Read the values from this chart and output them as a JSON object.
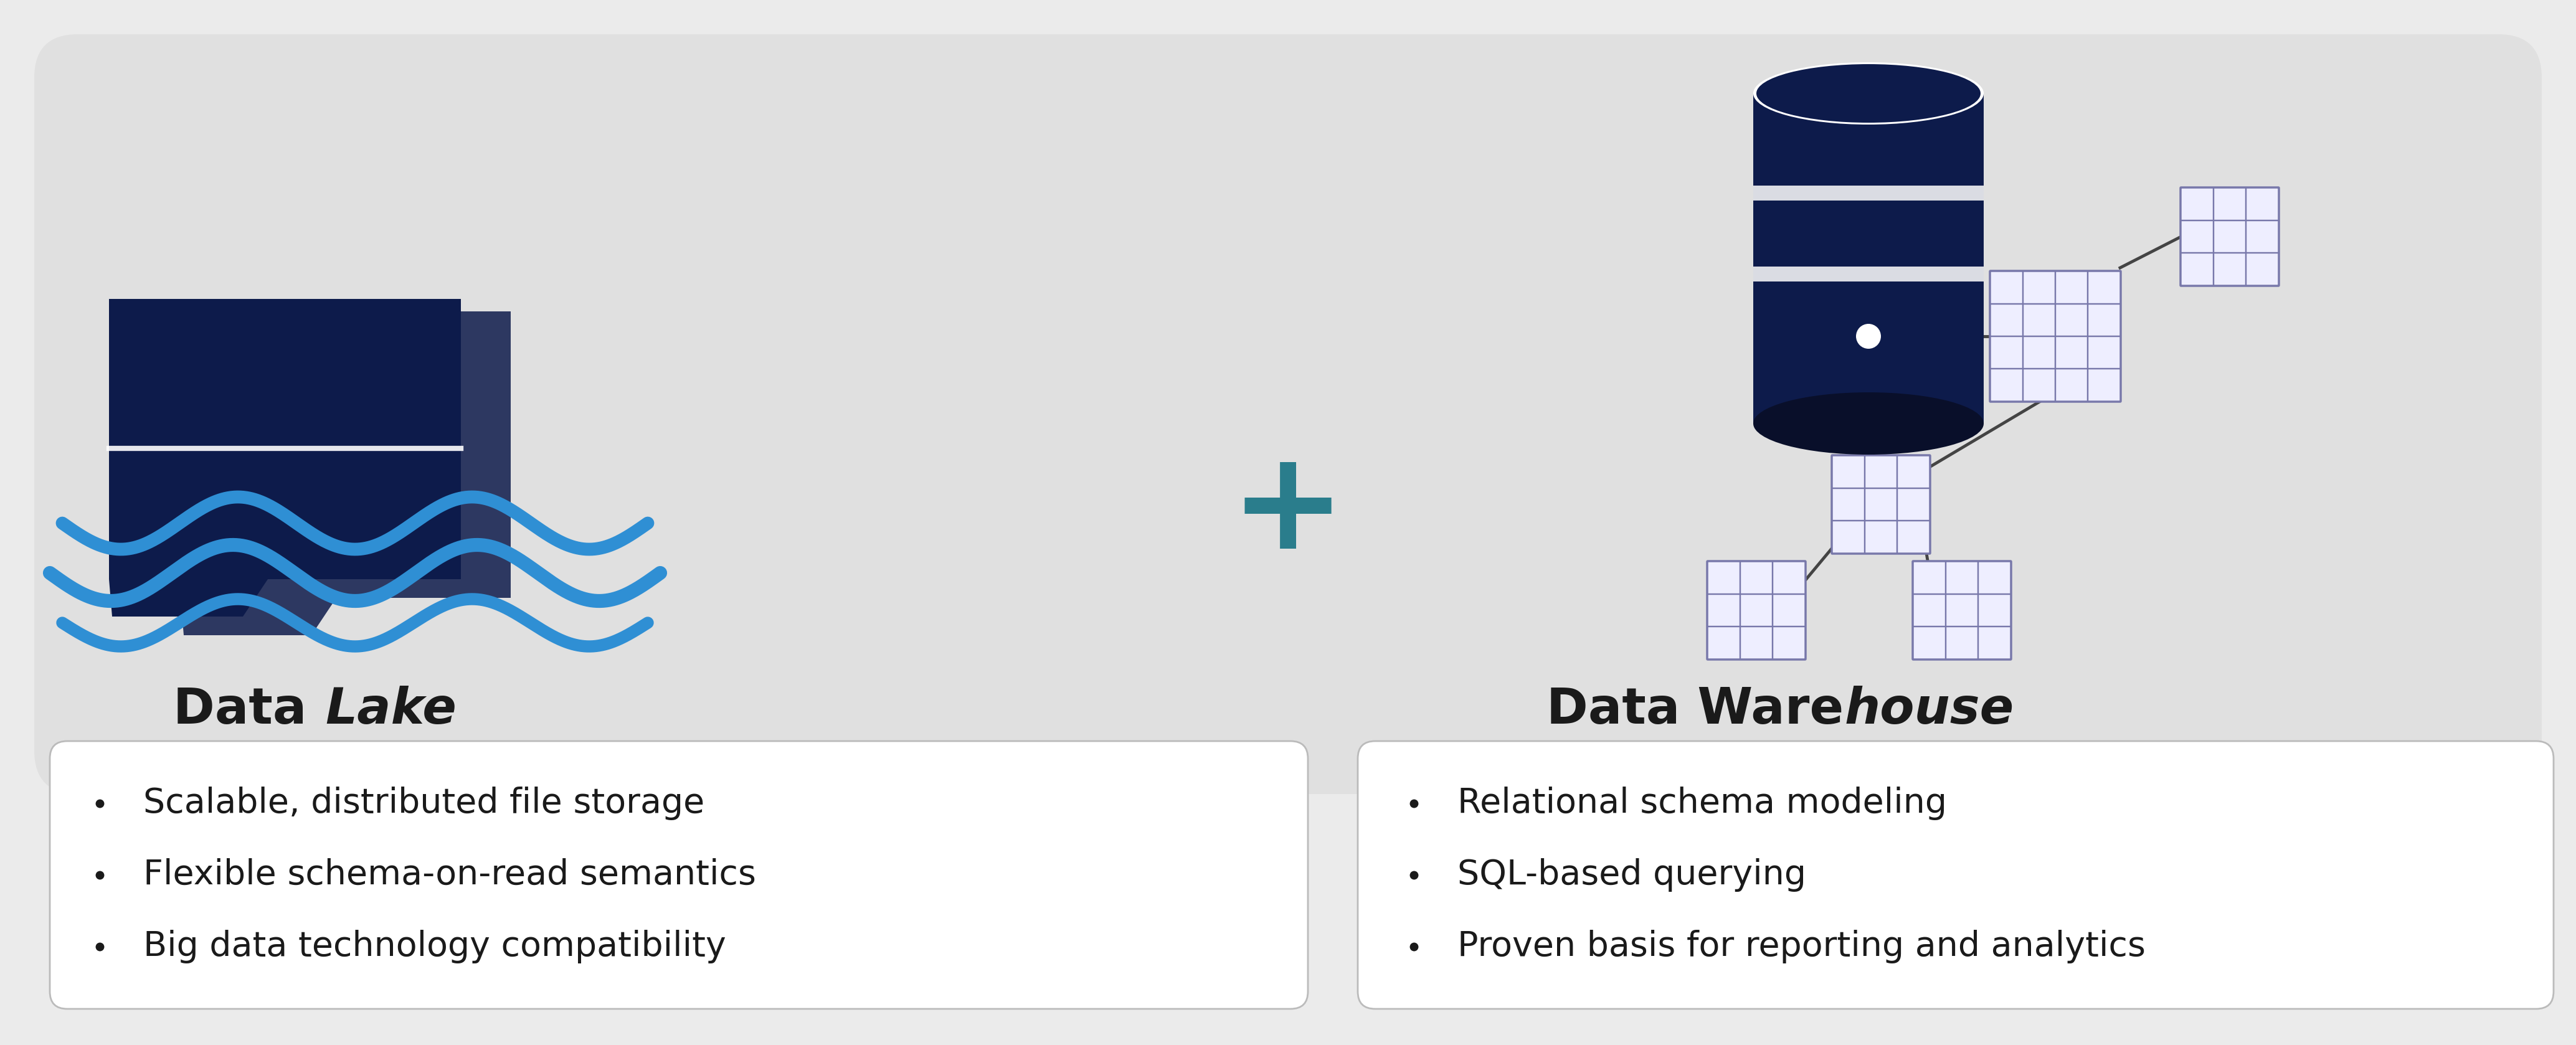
{
  "bg_color": "#ebebeb",
  "main_box_color": "#e0e0e0",
  "white_box_color": "#ffffff",
  "dark_navy": "#0d1b4b",
  "blue_wave": "#2f8fd4",
  "teal_plus": "#2a7d8c",
  "grid_color": "#7878aa",
  "grid_fill": "#eeeeff",
  "text_color": "#1a1a1a",
  "title_left_normal": "Data ",
  "title_left_italic": "Lake",
  "title_right_normal": "Data Ware",
  "title_right_italic": "house",
  "bullet_left": [
    "Scalable, distributed file storage",
    "Flexible schema-on-read semantics",
    "Big data technology compatibility"
  ],
  "bullet_right": [
    "Relational schema modeling",
    "SQL-based querying",
    "Proven basis for reporting and analytics"
  ],
  "plus_sign": "+",
  "title_fontsize": 58,
  "bullet_fontsize": 40,
  "plus_fontsize": 160,
  "border_color": "#bbbbbb",
  "connector_color": "#444444"
}
